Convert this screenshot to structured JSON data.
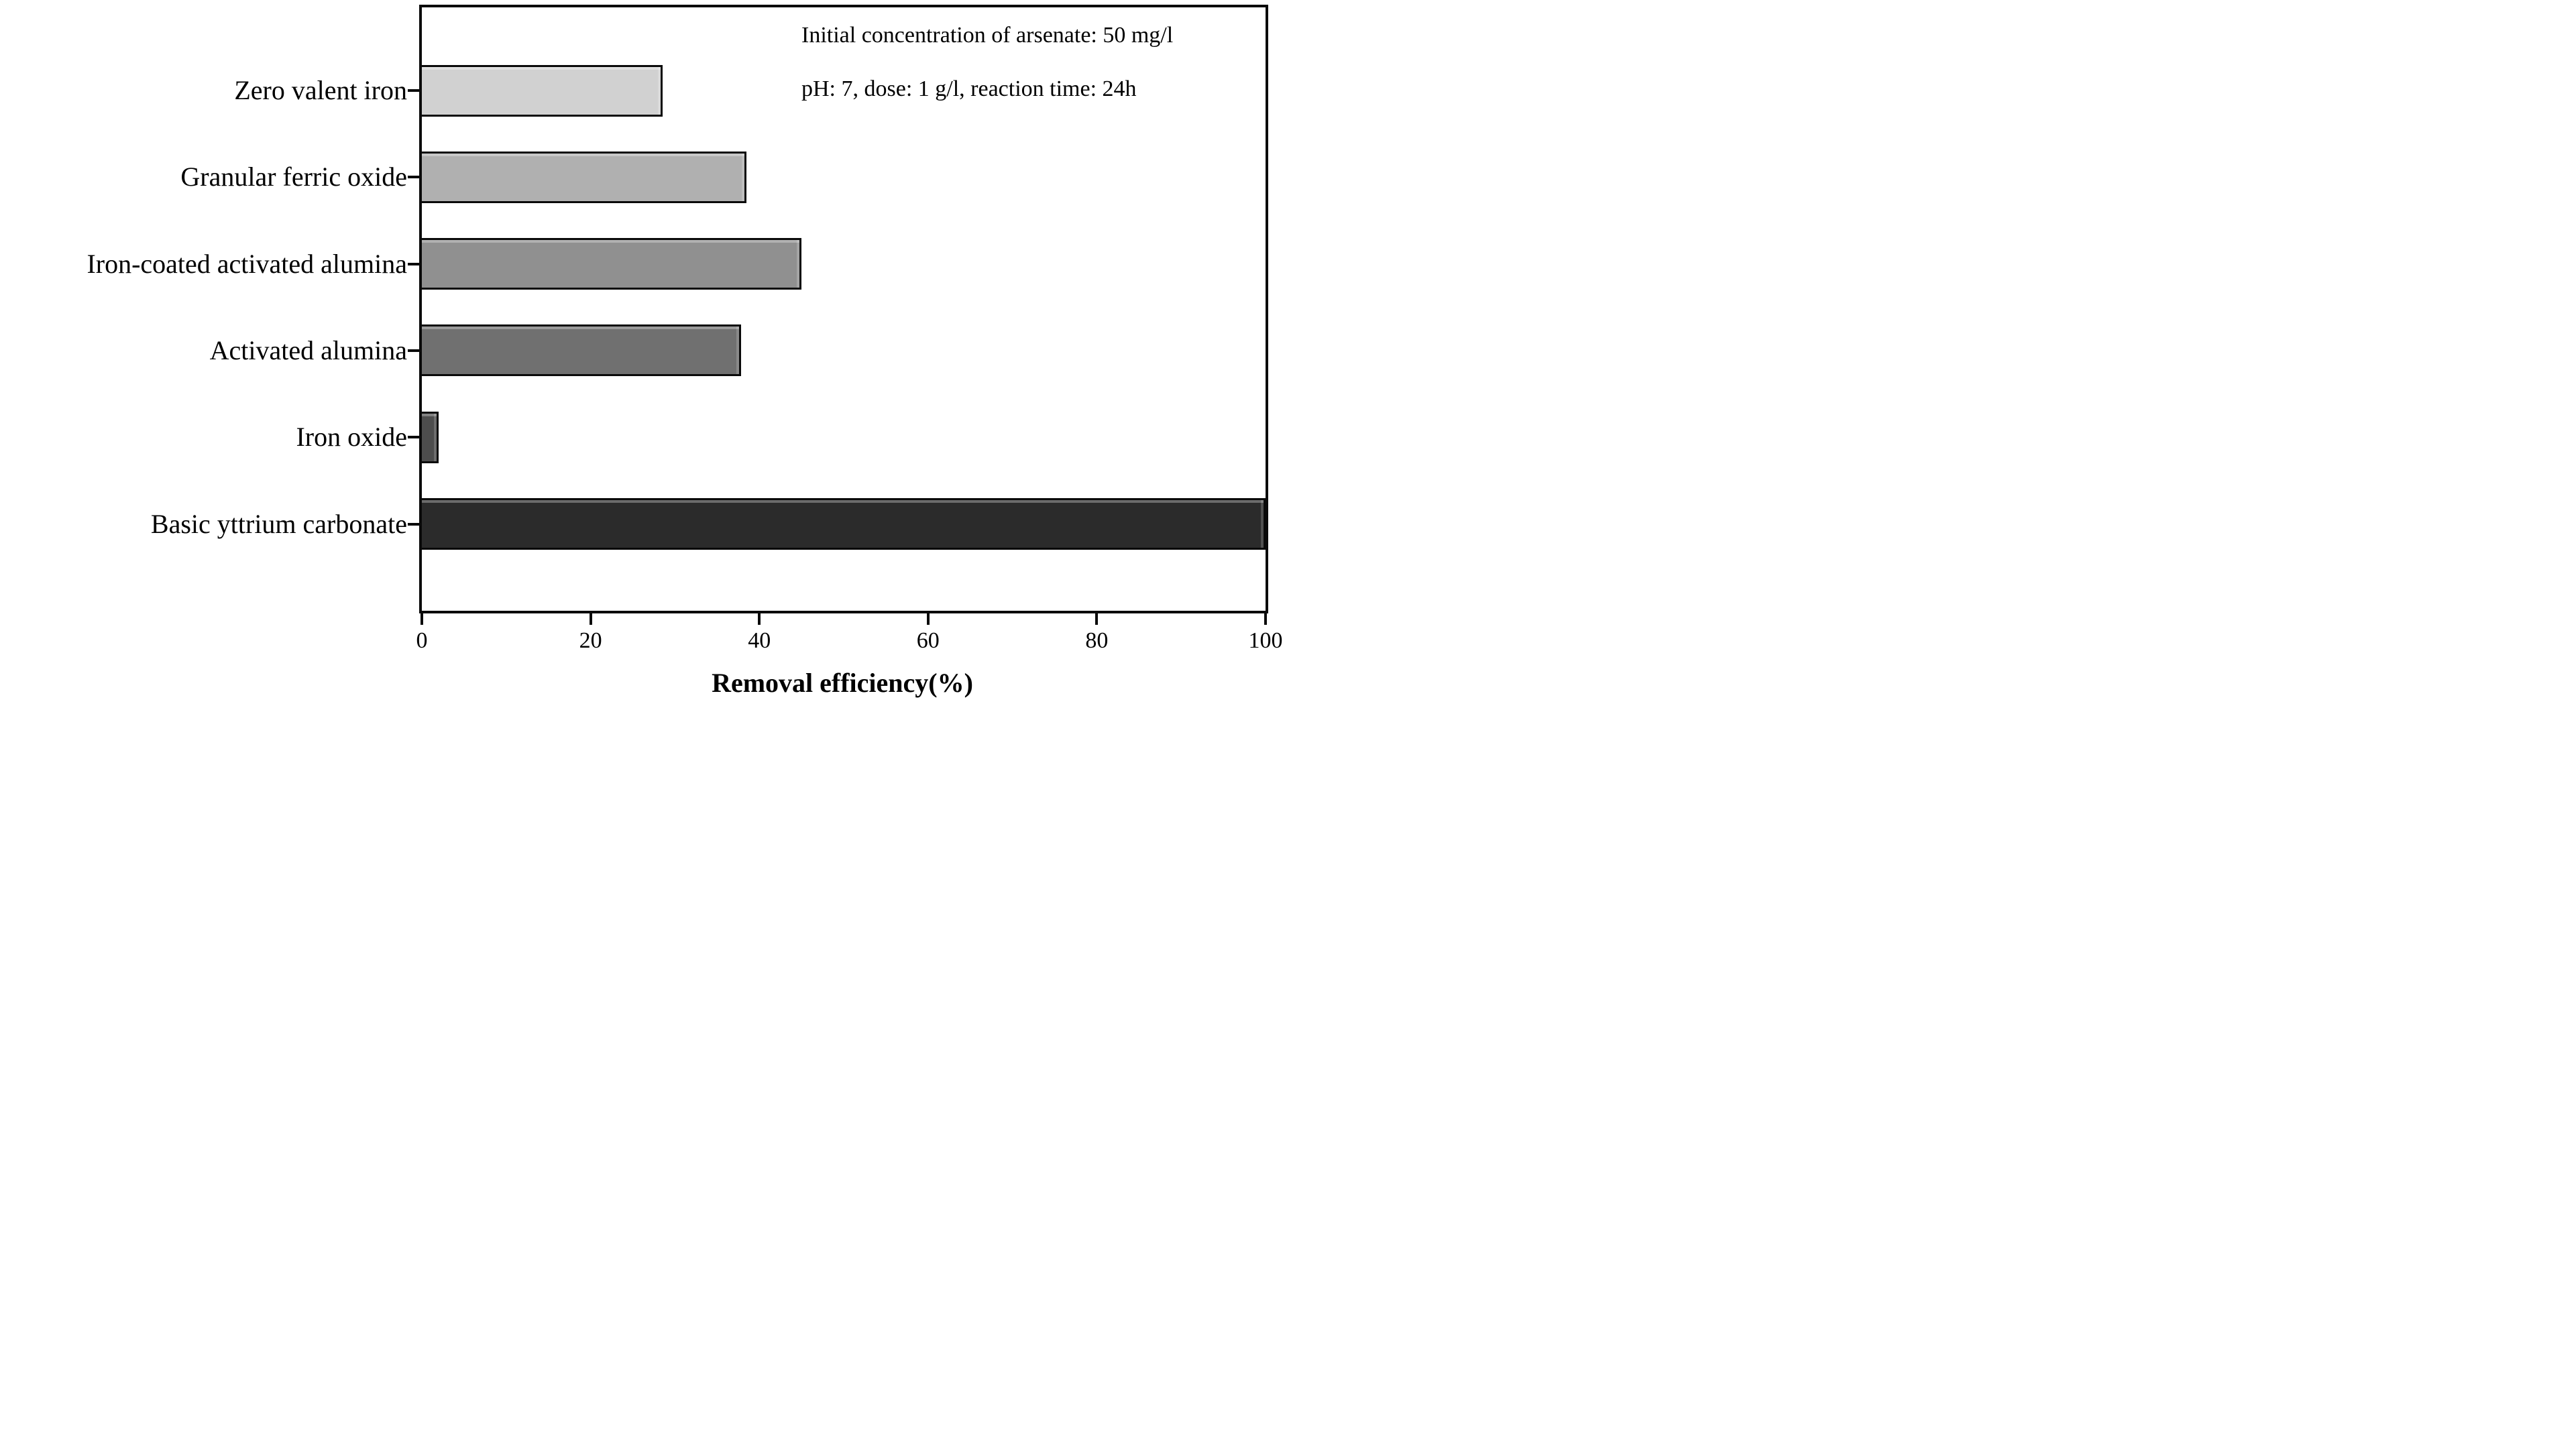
{
  "figure": {
    "background": "#ffffff",
    "frame_color": "#0a0a0a"
  },
  "chart_data": {
    "type": "bar",
    "orientation": "horizontal",
    "title": "",
    "xlabel": "Removal efficiency(%)",
    "ylabel": "",
    "xlim": [
      0,
      100
    ],
    "x_ticks": [
      0,
      20,
      40,
      60,
      80,
      100
    ],
    "grid": false,
    "legend": false,
    "categories": [
      "Zero valent iron",
      "Granular ferric oxide",
      "Iron-coated activated alumina",
      "Activated alumina",
      "Iron oxide",
      "Basic yttrium carbonate"
    ],
    "values": [
      28.5,
      38.5,
      45,
      37.8,
      2,
      100
    ],
    "bar_colors": [
      "#d1d1d1",
      "#b0b0b0",
      "#909090",
      "#707070",
      "#4d4d4d",
      "#2b2b2b"
    ],
    "annotations": [
      "Initial concentration of arsenate: 50 mg/l",
      "pH: 7, dose: 1 g/l, reaction time: 24h"
    ]
  }
}
